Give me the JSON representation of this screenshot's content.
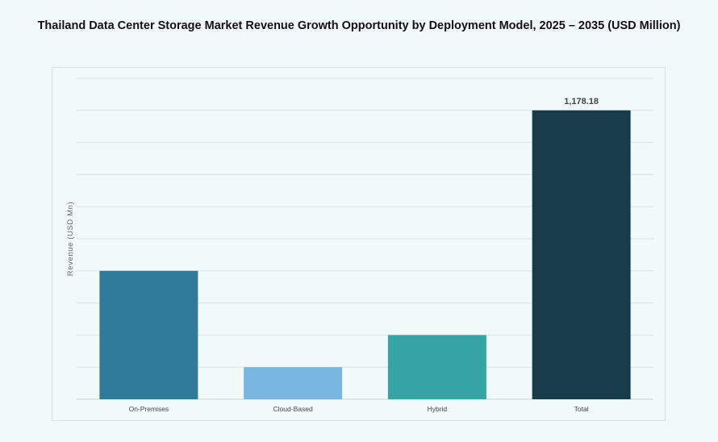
{
  "chart_data": {
    "type": "bar",
    "title": "Thailand Data Center Storage Market Revenue Growth Opportunity by Deployment Model, 2025 – 2035 (USD Million)",
    "xlabel": "",
    "ylabel": "Revenue (USD Mn)",
    "categories": [
      "On-Premises",
      "Cloud-Based",
      "Hybrid",
      "Total"
    ],
    "values": [
      523.6,
      130.9,
      261.8,
      1178.18
    ],
    "data_labels": [
      "",
      "",
      "",
      "1,178.18"
    ],
    "colors": [
      "#317b9a",
      "#79b5e1",
      "#35a4a4",
      "#183d4a"
    ],
    "ylim": [
      0,
      1309.1
    ],
    "grid": true,
    "legend": "none"
  }
}
